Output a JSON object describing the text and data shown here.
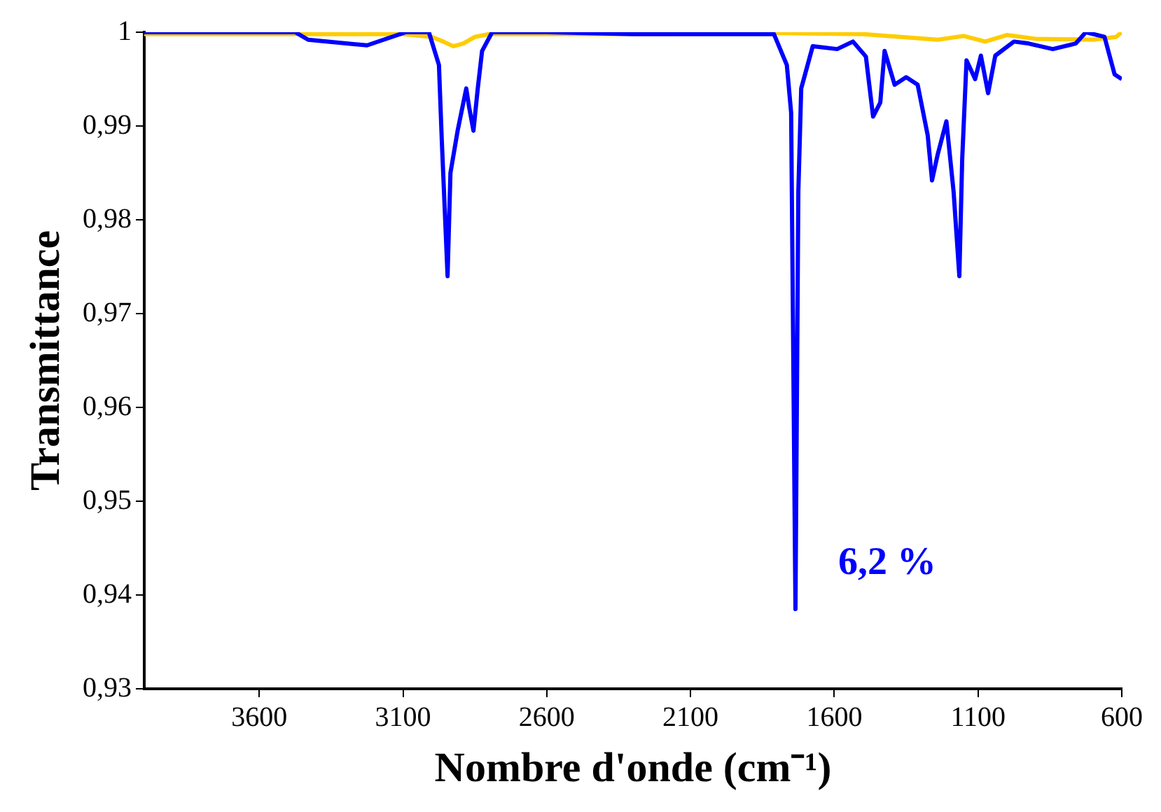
{
  "chart_data": {
    "type": "line",
    "xlabel": "Nombre d'onde (cm⁻¹)",
    "ylabel": "Transmittance",
    "xlim": [
      4000,
      600
    ],
    "xticks": [
      3600,
      3100,
      2600,
      2100,
      1600,
      1100,
      600
    ],
    "ylim": [
      0.93,
      1
    ],
    "yticks": [
      {
        "value": 0.93,
        "label": "0,93"
      },
      {
        "value": 0.94,
        "label": "0,94"
      },
      {
        "value": 0.95,
        "label": "0,95"
      },
      {
        "value": 0.96,
        "label": "0,96"
      },
      {
        "value": 0.97,
        "label": "0,97"
      },
      {
        "value": 0.98,
        "label": "0,98"
      },
      {
        "value": 0.99,
        "label": "0,99"
      },
      {
        "value": 1,
        "label": "1"
      }
    ],
    "grid": false,
    "legend": false,
    "marker": "none",
    "line_style": "solid",
    "series": [
      {
        "color": "#0000ff",
        "x": [
          4000,
          3475,
          3430,
          3225,
          3090,
          3010,
          2975,
          2965,
          2945,
          2935,
          2910,
          2880,
          2870,
          2855,
          2840,
          2825,
          2790,
          2600,
          2300,
          1810,
          1765,
          1750,
          1735,
          1725,
          1715,
          1675,
          1590,
          1535,
          1490,
          1465,
          1440,
          1425,
          1390,
          1350,
          1310,
          1275,
          1260,
          1240,
          1210,
          1185,
          1165,
          1155,
          1140,
          1110,
          1090,
          1065,
          1040,
          975,
          925,
          840,
          760,
          725,
          660,
          625,
          600
        ],
        "values": [
          1,
          1,
          0.9992,
          0.9986,
          1,
          1,
          0.9965,
          0.9884,
          0.974,
          0.985,
          0.9895,
          0.994,
          0.992,
          0.9895,
          0.994,
          0.998,
          1,
          1,
          0.9998,
          0.9998,
          0.9965,
          0.9914,
          0.9385,
          0.983,
          0.994,
          0.9985,
          0.9982,
          0.999,
          0.9974,
          0.991,
          0.9925,
          0.998,
          0.9944,
          0.9952,
          0.9944,
          0.989,
          0.9842,
          0.987,
          0.9905,
          0.983,
          0.974,
          0.9865,
          0.997,
          0.995,
          0.9975,
          0.9935,
          0.9975,
          0.999,
          0.9988,
          0.9982,
          0.9988,
          1,
          0.9995,
          0.9955,
          0.995
        ]
      },
      {
        "color": "#ffcc00",
        "x": [
          4000,
          3500,
          3100,
          3000,
          2960,
          2925,
          2890,
          2850,
          2800,
          2300,
          1800,
          1500,
          1240,
          1150,
          1075,
          1000,
          900,
          700,
          620,
          600
        ],
        "values": [
          0.9998,
          0.9998,
          0.9998,
          0.9995,
          0.999,
          0.9985,
          0.9988,
          0.9995,
          0.9998,
          0.9998,
          0.9999,
          0.9998,
          0.9992,
          0.9996,
          0.999,
          0.9997,
          0.9993,
          0.9992,
          0.9995,
          1
        ]
      }
    ],
    "annotations": [
      "6,2 %"
    ]
  }
}
